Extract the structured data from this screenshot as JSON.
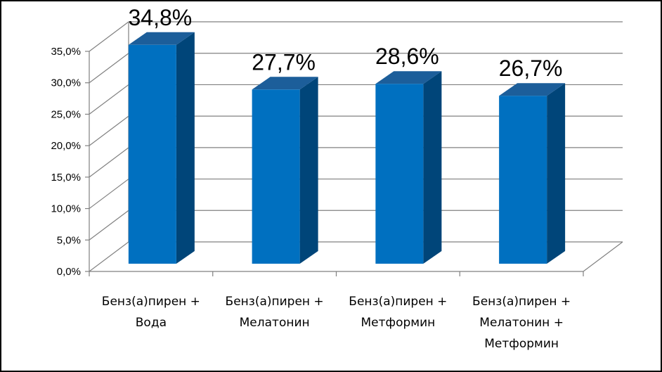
{
  "colors": {
    "bar_front": "#0070C0",
    "bar_side": "#004579",
    "bar_top": "#1C5E9A",
    "grid": "#808080"
  },
  "chart_data": {
    "type": "bar",
    "categories": [
      [
        "Бенз(а)пирен +",
        "Вода"
      ],
      [
        "Бенз(а)пирен +",
        "Мелатонин"
      ],
      [
        "Бенз(а)пирен +",
        "Метформин"
      ],
      [
        "Бенз(а)пирен +",
        "Мелатонин +",
        "Метформин"
      ]
    ],
    "values": [
      34.8,
      27.7,
      28.6,
      26.7
    ],
    "data_labels": [
      "34,8%",
      "27,7%",
      "28,6%",
      "26,7%"
    ],
    "y_ticks": [
      "0,0%",
      "5,0%",
      "10,0%",
      "15,0%",
      "20,0%",
      "25,0%",
      "30,0%",
      "35,0%"
    ],
    "ylim": [
      0,
      35
    ],
    "grid": true,
    "legend": "none",
    "style": "3d-column"
  }
}
